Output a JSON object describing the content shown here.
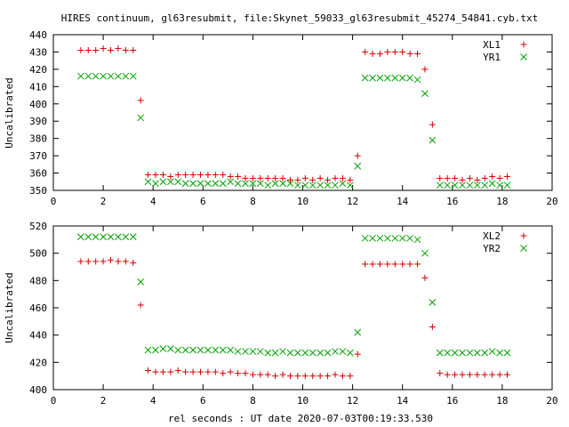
{
  "chart_data": {
    "title": "HIRES continuum, gl63resubmit, file:Skynet_59033_gl63resubmit_45274_54841.cyb.txt",
    "xlabel": "rel seconds : UT date 2020-07-03T00:19:33.530",
    "panels": [
      {
        "type": "scatter",
        "ylabel": "Uncalibrated",
        "xlim": [
          0,
          20
        ],
        "ylim": [
          350,
          440
        ],
        "xticks": [
          0,
          2,
          4,
          6,
          8,
          10,
          12,
          14,
          16,
          18,
          20
        ],
        "yticks": [
          350,
          360,
          370,
          380,
          390,
          400,
          410,
          420,
          430,
          440
        ],
        "legend": "top-right",
        "series": [
          {
            "name": "XL1",
            "marker": "plus",
            "color": "#d40000",
            "x": [
              1.1,
              1.4,
              1.7,
              2.0,
              2.3,
              2.6,
              2.9,
              3.2,
              3.5,
              3.8,
              4.1,
              4.4,
              4.7,
              5.0,
              5.3,
              5.6,
              5.9,
              6.2,
              6.5,
              6.8,
              7.1,
              7.4,
              7.7,
              8.0,
              8.3,
              8.6,
              8.9,
              9.2,
              9.5,
              9.8,
              10.1,
              10.4,
              10.7,
              11.0,
              11.3,
              11.6,
              11.9,
              12.2,
              12.5,
              12.8,
              13.1,
              13.4,
              13.7,
              14.0,
              14.3,
              14.6,
              14.9,
              15.2,
              15.5,
              15.8,
              16.1,
              16.4,
              16.7,
              17.0,
              17.3,
              17.6,
              17.9,
              18.2
            ],
            "y": [
              431,
              431,
              431,
              432,
              431,
              432,
              431,
              431,
              402,
              359,
              359,
              359,
              358,
              359,
              359,
              359,
              359,
              359,
              359,
              359,
              358,
              358,
              357,
              357,
              357,
              357,
              357,
              357,
              356,
              356,
              357,
              356,
              357,
              356,
              357,
              357,
              356,
              370,
              430,
              429,
              429,
              430,
              430,
              430,
              429,
              429,
              420,
              388,
              357,
              357,
              357,
              356,
              357,
              356,
              357,
              358,
              357,
              358
            ]
          },
          {
            "name": "YR1",
            "marker": "cross",
            "color": "#00a000",
            "x": [
              1.1,
              1.4,
              1.7,
              2.0,
              2.3,
              2.6,
              2.9,
              3.2,
              3.5,
              3.8,
              4.1,
              4.4,
              4.7,
              5.0,
              5.3,
              5.6,
              5.9,
              6.2,
              6.5,
              6.8,
              7.1,
              7.4,
              7.7,
              8.0,
              8.3,
              8.6,
              8.9,
              9.2,
              9.5,
              9.8,
              10.1,
              10.4,
              10.7,
              11.0,
              11.3,
              11.6,
              11.9,
              12.2,
              12.5,
              12.8,
              13.1,
              13.4,
              13.7,
              14.0,
              14.3,
              14.6,
              14.9,
              15.2,
              15.5,
              15.8,
              16.1,
              16.4,
              16.7,
              17.0,
              17.3,
              17.6,
              17.9,
              18.2
            ],
            "y": [
              416,
              416,
              416,
              416,
              416,
              416,
              416,
              416,
              392,
              355,
              354,
              355,
              355,
              355,
              354,
              354,
              354,
              354,
              354,
              354,
              355,
              354,
              354,
              354,
              354,
              353,
              354,
              354,
              354,
              353,
              353,
              353,
              353,
              353,
              353,
              354,
              353,
              364,
              415,
              415,
              415,
              415,
              415,
              415,
              415,
              414,
              406,
              379,
              353,
              353,
              353,
              353,
              353,
              353,
              353,
              354,
              353,
              353
            ]
          }
        ]
      },
      {
        "type": "scatter",
        "ylabel": "Uncalibrated",
        "xlim": [
          0,
          20
        ],
        "ylim": [
          400,
          520
        ],
        "xticks": [
          0,
          2,
          4,
          6,
          8,
          10,
          12,
          14,
          16,
          18,
          20
        ],
        "yticks": [
          400,
          420,
          440,
          460,
          480,
          500,
          520
        ],
        "legend": "top-right",
        "series": [
          {
            "name": "XL2",
            "marker": "plus",
            "color": "#d40000",
            "x": [
              1.1,
              1.4,
              1.7,
              2.0,
              2.3,
              2.6,
              2.9,
              3.2,
              3.5,
              3.8,
              4.1,
              4.4,
              4.7,
              5.0,
              5.3,
              5.6,
              5.9,
              6.2,
              6.5,
              6.8,
              7.1,
              7.4,
              7.7,
              8.0,
              8.3,
              8.6,
              8.9,
              9.2,
              9.5,
              9.8,
              10.1,
              10.4,
              10.7,
              11.0,
              11.3,
              11.6,
              11.9,
              12.2,
              12.5,
              12.8,
              13.1,
              13.4,
              13.7,
              14.0,
              14.3,
              14.6,
              14.9,
              15.2,
              15.5,
              15.8,
              16.1,
              16.4,
              16.7,
              17.0,
              17.3,
              17.6,
              17.9,
              18.2
            ],
            "y": [
              494,
              494,
              494,
              494,
              495,
              494,
              494,
              493,
              462,
              414,
              413,
              413,
              413,
              414,
              413,
              413,
              413,
              413,
              413,
              412,
              413,
              412,
              412,
              411,
              411,
              411,
              410,
              411,
              410,
              410,
              410,
              410,
              410,
              410,
              411,
              410,
              410,
              426,
              492,
              492,
              492,
              492,
              492,
              492,
              492,
              492,
              482,
              446,
              412,
              411,
              411,
              411,
              411,
              411,
              411,
              411,
              411,
              411
            ]
          },
          {
            "name": "YR2",
            "marker": "cross",
            "color": "#00a000",
            "x": [
              1.1,
              1.4,
              1.7,
              2.0,
              2.3,
              2.6,
              2.9,
              3.2,
              3.5,
              3.8,
              4.1,
              4.4,
              4.7,
              5.0,
              5.3,
              5.6,
              5.9,
              6.2,
              6.5,
              6.8,
              7.1,
              7.4,
              7.7,
              8.0,
              8.3,
              8.6,
              8.9,
              9.2,
              9.5,
              9.8,
              10.1,
              10.4,
              10.7,
              11.0,
              11.3,
              11.6,
              11.9,
              12.2,
              12.5,
              12.8,
              13.1,
              13.4,
              13.7,
              14.0,
              14.3,
              14.6,
              14.9,
              15.2,
              15.5,
              15.8,
              16.1,
              16.4,
              16.7,
              17.0,
              17.3,
              17.6,
              17.9,
              18.2
            ],
            "y": [
              512,
              512,
              512,
              512,
              512,
              512,
              512,
              512,
              479,
              429,
              429,
              430,
              430,
              429,
              429,
              429,
              429,
              429,
              429,
              429,
              429,
              428,
              428,
              428,
              428,
              427,
              427,
              428,
              427,
              427,
              427,
              427,
              427,
              427,
              428,
              428,
              427,
              442,
              511,
              511,
              511,
              511,
              511,
              511,
              511,
              510,
              500,
              464,
              427,
              427,
              427,
              427,
              427,
              427,
              427,
              428,
              427,
              427
            ]
          }
        ]
      }
    ]
  }
}
